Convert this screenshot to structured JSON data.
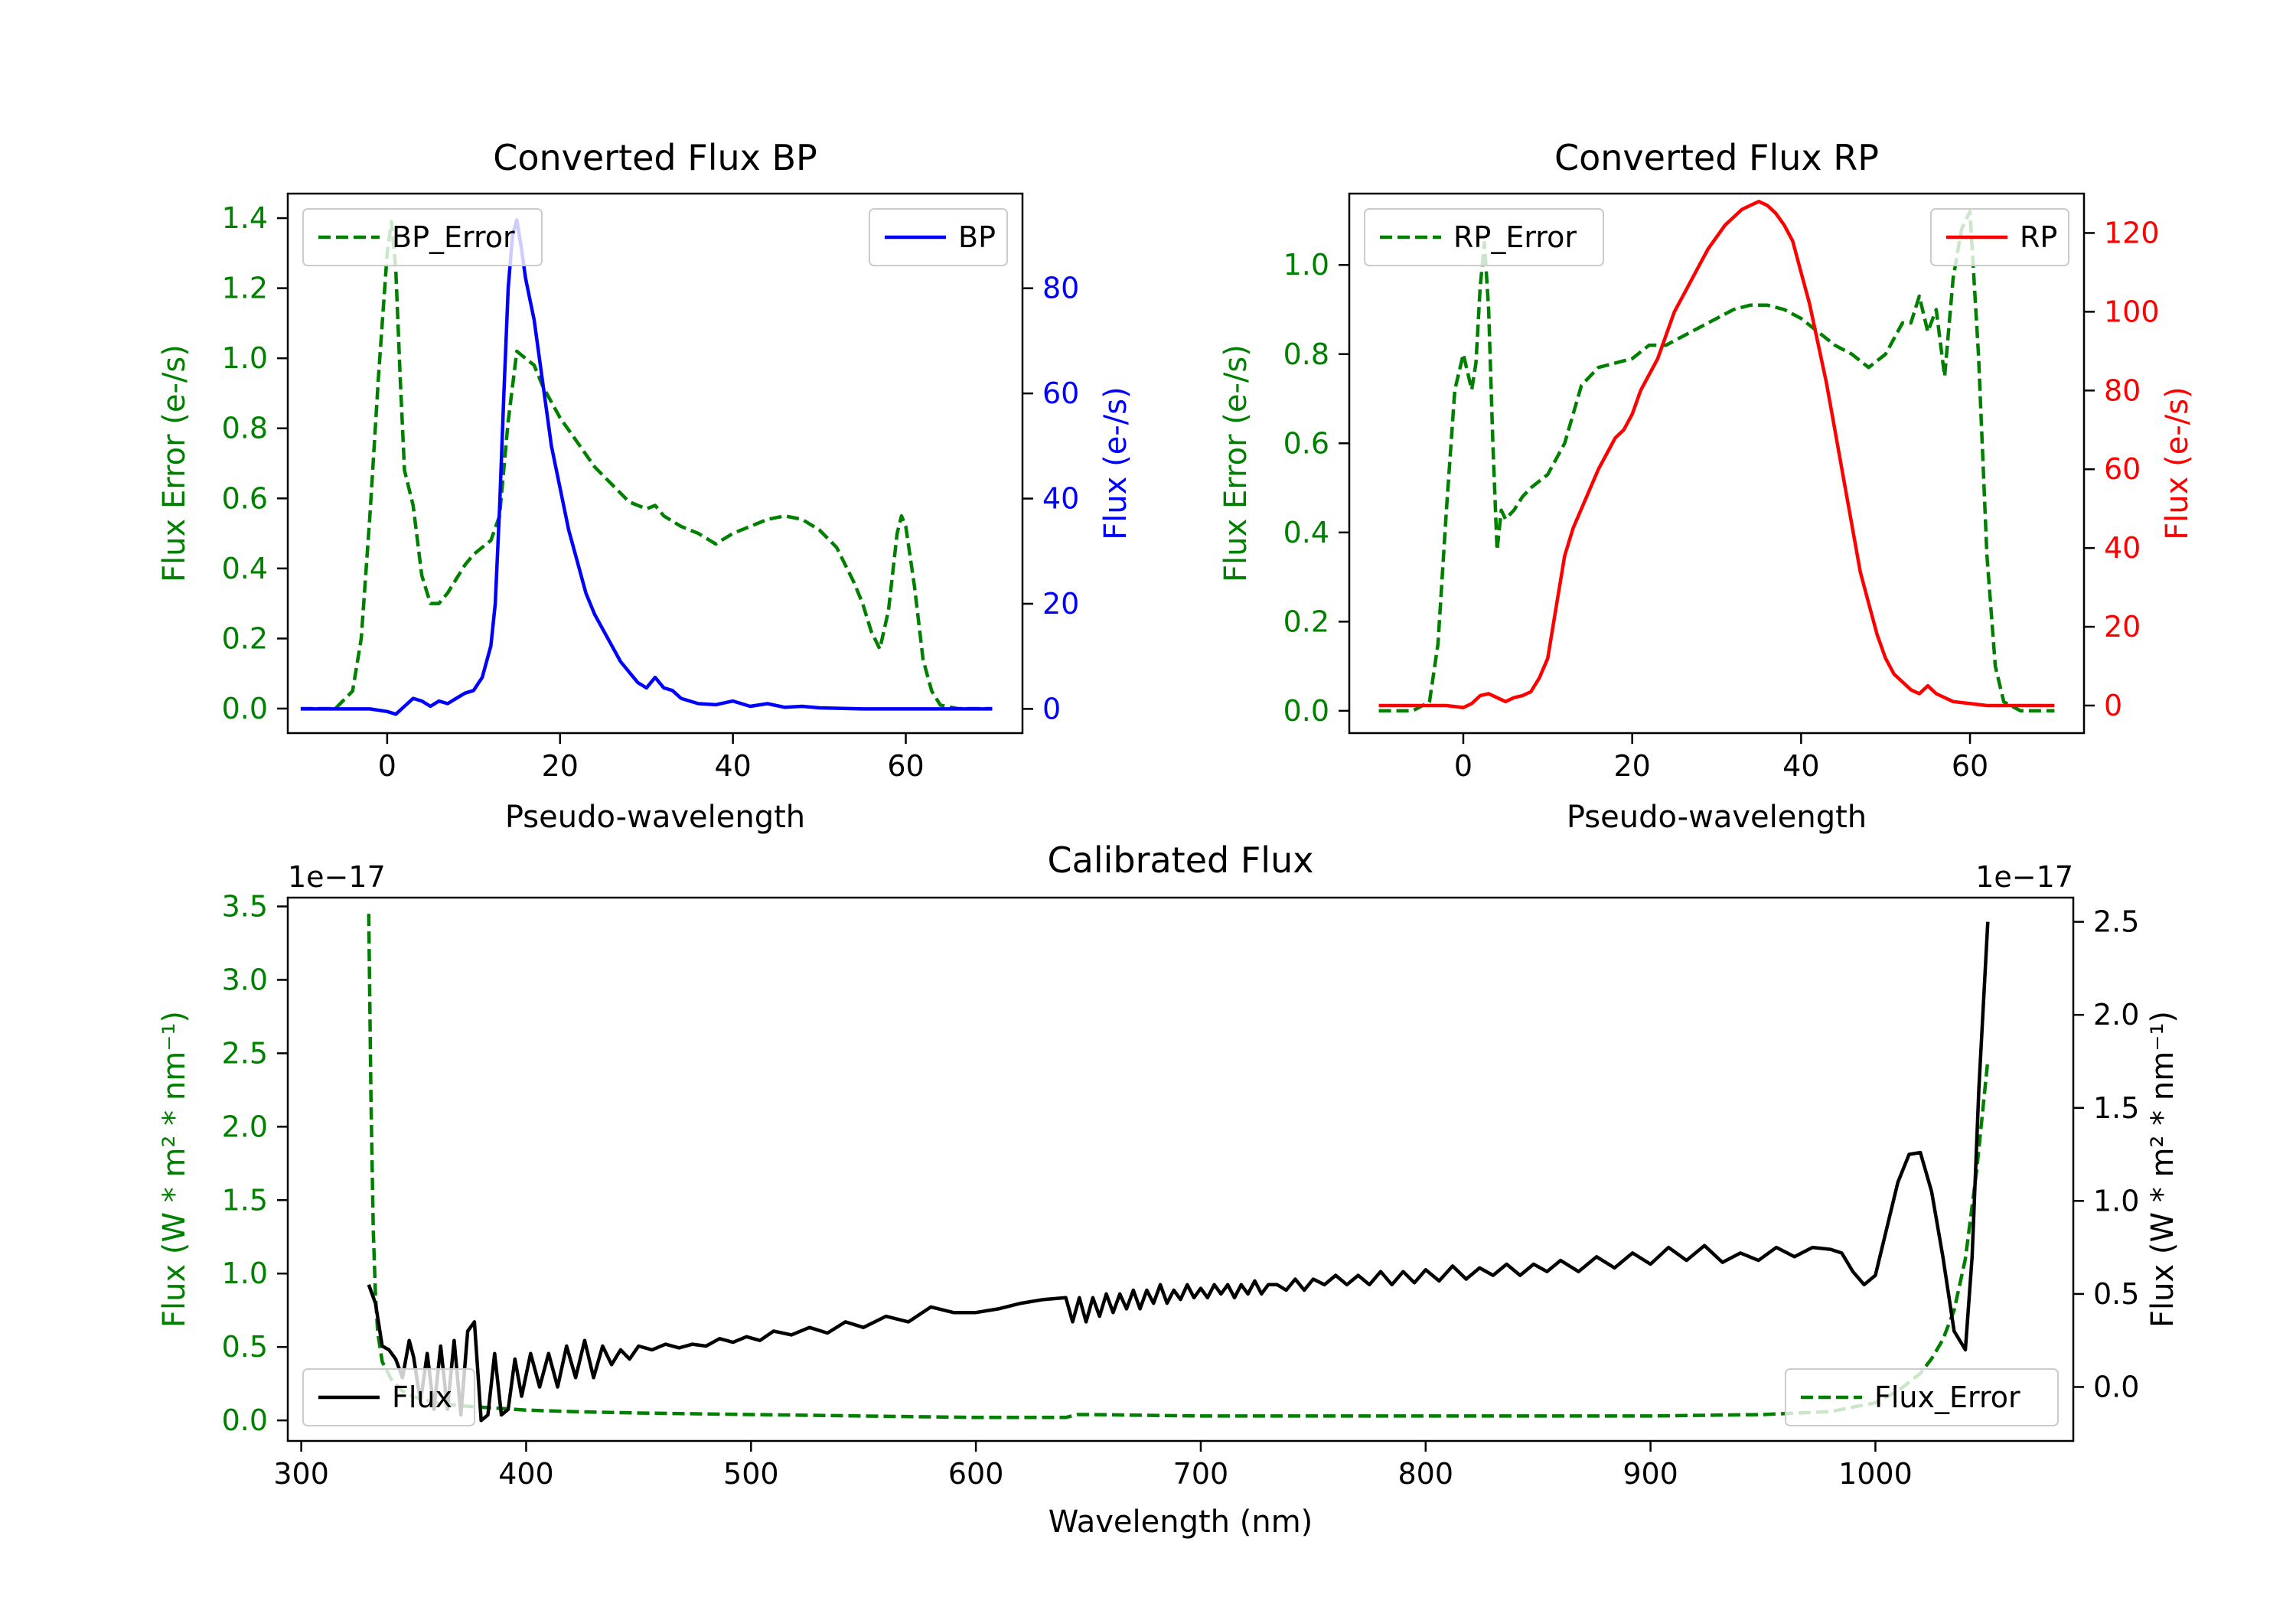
{
  "chart_data": [
    {
      "type": "line",
      "title": "Converted Flux BP",
      "xlabel": "Pseudo-wavelength",
      "ylabel_left": "Flux Error (e-/s)",
      "ylabel_right": "Flux (e-/s)",
      "xlim": [
        -11.5,
        73.5
      ],
      "ylim_left": [
        -0.07,
        1.47
      ],
      "ylim_right": [
        -4.6,
        98
      ],
      "xticks": [
        "0",
        "20",
        "40",
        "60"
      ],
      "yticks_left": [
        "0.0",
        "0.2",
        "0.4",
        "0.6",
        "0.8",
        "1.0",
        "1.2",
        "1.4"
      ],
      "yticks_right": [
        "0",
        "20",
        "40",
        "60",
        "80"
      ],
      "legend": {
        "error": "BP_Error",
        "flux": "BP"
      },
      "colors": {
        "error": "#008000",
        "flux": "#0000ff",
        "left_axis": "#008000",
        "right_axis": "#0000ff"
      },
      "series": [
        {
          "name": "BP_Error",
          "axis": "left",
          "style": "dashed",
          "x": [
            -10,
            -6,
            -4,
            -3,
            -2,
            -1,
            0,
            0.5,
            1,
            1.5,
            2,
            3,
            4,
            5,
            6,
            7,
            8,
            9,
            10,
            12,
            13,
            14,
            15,
            16,
            17,
            18,
            20,
            22,
            24,
            26,
            28,
            30,
            31,
            32,
            34,
            36,
            38,
            40,
            42,
            44,
            46,
            48,
            50,
            52,
            54,
            55,
            56,
            57,
            58,
            59,
            59.5,
            60,
            61,
            62,
            63,
            64,
            66,
            70
          ],
          "y": [
            0,
            0,
            0.05,
            0.2,
            0.55,
            0.95,
            1.3,
            1.39,
            1.25,
            0.95,
            0.68,
            0.58,
            0.38,
            0.3,
            0.3,
            0.33,
            0.37,
            0.41,
            0.44,
            0.48,
            0.55,
            0.82,
            1.02,
            1.0,
            0.98,
            0.92,
            0.83,
            0.76,
            0.69,
            0.64,
            0.59,
            0.57,
            0.58,
            0.55,
            0.52,
            0.5,
            0.47,
            0.5,
            0.52,
            0.54,
            0.55,
            0.54,
            0.51,
            0.46,
            0.36,
            0.3,
            0.22,
            0.17,
            0.28,
            0.5,
            0.55,
            0.52,
            0.35,
            0.14,
            0.05,
            0.01,
            0,
            0
          ]
        },
        {
          "name": "BP",
          "axis": "right",
          "style": "solid",
          "x": [
            -10,
            -2,
            0,
            1,
            2,
            3,
            4,
            5,
            6,
            7,
            8,
            9,
            10,
            11,
            12,
            12.5,
            13,
            13.5,
            14,
            14.5,
            15,
            15.5,
            16,
            16.5,
            17,
            18,
            19,
            20,
            21,
            22,
            23,
            24,
            25,
            26,
            27,
            28,
            29,
            30,
            31,
            32,
            33,
            34,
            35,
            36,
            38,
            40,
            42,
            44,
            46,
            48,
            50,
            55,
            60,
            65,
            70
          ],
          "y": [
            0,
            0,
            -0.5,
            -1,
            0.5,
            2,
            1.5,
            0.5,
            1.5,
            1,
            2,
            3,
            3.5,
            6,
            12,
            20,
            38,
            60,
            80,
            90,
            93,
            88,
            82,
            78,
            74,
            62,
            50,
            42,
            34,
            28,
            22,
            18,
            15,
            12,
            9,
            7,
            5,
            4,
            6,
            4,
            3.5,
            2,
            1.5,
            1,
            0.8,
            1.5,
            0.5,
            1,
            0.3,
            0.5,
            0.2,
            0,
            0,
            0,
            0
          ]
        }
      ]
    },
    {
      "type": "line",
      "title": "Converted Flux RP",
      "xlabel": "Pseudo-wavelength",
      "ylabel_left": "Flux Error (e-/s)",
      "ylabel_right": "Flux (e-/s)",
      "xlim": [
        -13.5,
        73.5
      ],
      "ylim_left": [
        -0.05,
        1.16
      ],
      "ylim_right": [
        -7,
        130
      ],
      "xticks": [
        "0",
        "20",
        "40",
        "60"
      ],
      "yticks_left": [
        "0.0",
        "0.2",
        "0.4",
        "0.6",
        "0.8",
        "1.0"
      ],
      "yticks_right": [
        "0",
        "20",
        "40",
        "60",
        "80",
        "100",
        "120"
      ],
      "legend": {
        "error": "RP_Error",
        "flux": "RP"
      },
      "colors": {
        "error": "#008000",
        "flux": "#ff0000",
        "left_axis": "#008000",
        "right_axis": "#ff0000"
      },
      "series": [
        {
          "name": "RP_Error",
          "axis": "left",
          "style": "dashed",
          "x": [
            -10,
            -6,
            -4,
            -3,
            -2,
            -1,
            0,
            0.5,
            1,
            1.5,
            2,
            2.5,
            3,
            3.5,
            4,
            4.5,
            5,
            6,
            7,
            8,
            10,
            12,
            14,
            16,
            18,
            20,
            22,
            24,
            26,
            28,
            30,
            32,
            34,
            36,
            38,
            40,
            42,
            44,
            46,
            48,
            50,
            52,
            53,
            54,
            55,
            56,
            57,
            58,
            59,
            60,
            61,
            62,
            63,
            64,
            66,
            70
          ],
          "y": [
            0,
            0,
            0.02,
            0.15,
            0.45,
            0.72,
            0.8,
            0.76,
            0.72,
            0.78,
            0.95,
            1.05,
            0.9,
            0.6,
            0.36,
            0.45,
            0.43,
            0.45,
            0.48,
            0.5,
            0.53,
            0.6,
            0.73,
            0.77,
            0.78,
            0.79,
            0.82,
            0.82,
            0.84,
            0.86,
            0.88,
            0.9,
            0.91,
            0.91,
            0.9,
            0.88,
            0.85,
            0.82,
            0.8,
            0.77,
            0.8,
            0.87,
            0.87,
            0.93,
            0.85,
            0.9,
            0.75,
            0.97,
            1.08,
            1.12,
            0.8,
            0.35,
            0.1,
            0.02,
            0,
            0
          ]
        },
        {
          "name": "RP",
          "axis": "right",
          "style": "solid",
          "x": [
            -10,
            -2,
            0,
            1,
            2,
            3,
            4,
            5,
            6,
            7,
            8,
            9,
            10,
            11,
            12,
            13,
            14,
            15,
            16,
            17,
            18,
            19,
            20,
            21,
            22,
            23,
            24,
            25,
            26,
            27,
            28,
            29,
            30,
            31,
            32,
            33,
            34,
            35,
            36,
            37,
            38,
            39,
            40,
            41,
            42,
            43,
            44,
            45,
            46,
            47,
            48,
            49,
            50,
            51,
            52,
            53,
            54,
            55,
            56,
            58,
            60,
            62,
            70
          ],
          "y": [
            0,
            0,
            -0.5,
            0.5,
            2.5,
            3,
            2,
            1,
            2,
            2.5,
            3.5,
            7,
            12,
            25,
            38,
            45,
            50,
            55,
            60,
            64,
            68,
            70,
            74,
            80,
            84,
            88,
            94,
            100,
            104,
            108,
            112,
            116,
            119,
            122,
            124,
            126,
            127,
            128,
            127,
            125,
            122,
            118,
            110,
            102,
            92,
            82,
            70,
            58,
            46,
            34,
            26,
            18,
            12,
            8,
            6,
            4,
            3,
            5,
            3,
            1,
            0.5,
            0,
            0
          ]
        }
      ]
    },
    {
      "type": "line",
      "title": "Calibrated Flux",
      "xlabel": "Wavelength (nm)",
      "ylabel_left": "Flux (W * m² * nm⁻¹)",
      "ylabel_right": "Flux (W * m² * nm⁻¹)",
      "offset_left": "1e−17",
      "offset_right": "1e−17",
      "xlim": [
        294,
        1088
      ],
      "ylim_left": [
        -0.14,
        3.56
      ],
      "ylim_right": [
        -0.29,
        2.63
      ],
      "xticks": [
        "300",
        "400",
        "500",
        "600",
        "700",
        "800",
        "900",
        "1000"
      ],
      "yticks_left": [
        "0.0",
        "0.5",
        "1.0",
        "1.5",
        "2.0",
        "2.5",
        "3.0",
        "3.5"
      ],
      "yticks_right": [
        "0.0",
        "0.5",
        "1.0",
        "1.5",
        "2.0",
        "2.5"
      ],
      "legend": {
        "flux": "Flux",
        "error": "Flux_Error"
      },
      "colors": {
        "error": "#008000",
        "flux": "#000000",
        "left_axis": "#008000",
        "right_axis": "#000000"
      },
      "series": [
        {
          "name": "Flux_Error",
          "axis": "left",
          "style": "dashed",
          "x": [
            330,
            331,
            332,
            333,
            334,
            336,
            340,
            345,
            350,
            360,
            370,
            380,
            390,
            400,
            420,
            450,
            500,
            550,
            600,
            640,
            645,
            650,
            700,
            750,
            800,
            850,
            900,
            950,
            980,
            1000,
            1010,
            1020,
            1025,
            1030,
            1035,
            1040,
            1045,
            1050
          ],
          "y": [
            3.45,
            2.2,
            1.3,
            0.85,
            0.6,
            0.4,
            0.28,
            0.2,
            0.16,
            0.12,
            0.1,
            0.09,
            0.08,
            0.07,
            0.06,
            0.05,
            0.04,
            0.03,
            0.02,
            0.02,
            0.04,
            0.04,
            0.03,
            0.03,
            0.03,
            0.03,
            0.03,
            0.04,
            0.06,
            0.12,
            0.2,
            0.32,
            0.42,
            0.55,
            0.75,
            1.1,
            1.7,
            2.45
          ]
        },
        {
          "name": "Flux",
          "axis": "right",
          "style": "solid",
          "x": [
            330,
            333,
            336,
            339,
            342,
            345,
            348,
            350,
            353,
            356,
            359,
            362,
            365,
            368,
            371,
            374,
            377,
            380,
            383,
            386,
            389,
            392,
            395,
            398,
            402,
            406,
            410,
            414,
            418,
            422,
            426,
            430,
            434,
            438,
            442,
            446,
            450,
            456,
            462,
            468,
            474,
            480,
            486,
            492,
            498,
            504,
            510,
            518,
            526,
            534,
            542,
            550,
            560,
            570,
            580,
            590,
            600,
            610,
            620,
            630,
            640,
            643,
            646,
            649,
            652,
            655,
            658,
            661,
            664,
            667,
            670,
            673,
            676,
            679,
            682,
            685,
            688,
            691,
            694,
            697,
            700,
            703,
            706,
            709,
            712,
            715,
            718,
            721,
            724,
            727,
            730,
            734,
            738,
            742,
            746,
            750,
            755,
            760,
            765,
            770,
            775,
            780,
            785,
            790,
            795,
            800,
            806,
            812,
            818,
            824,
            830,
            836,
            842,
            848,
            854,
            860,
            868,
            876,
            884,
            892,
            900,
            908,
            916,
            924,
            932,
            940,
            948,
            956,
            964,
            972,
            980,
            985,
            990,
            995,
            1000,
            1005,
            1010,
            1015,
            1020,
            1025,
            1030,
            1035,
            1040,
            1043,
            1046,
            1050
          ],
          "y": [
            0.55,
            0.45,
            0.22,
            0.2,
            0.15,
            0.05,
            0.25,
            0.16,
            -0.08,
            0.18,
            -0.12,
            0.22,
            -0.12,
            0.25,
            -0.15,
            0.3,
            0.35,
            -0.18,
            -0.15,
            0.18,
            -0.15,
            -0.12,
            0.15,
            -0.05,
            0.18,
            0.0,
            0.18,
            0.0,
            0.22,
            0.05,
            0.25,
            0.05,
            0.22,
            0.12,
            0.2,
            0.15,
            0.22,
            0.2,
            0.23,
            0.21,
            0.23,
            0.22,
            0.26,
            0.24,
            0.27,
            0.25,
            0.3,
            0.28,
            0.32,
            0.29,
            0.35,
            0.32,
            0.38,
            0.35,
            0.43,
            0.4,
            0.4,
            0.42,
            0.45,
            0.47,
            0.48,
            0.35,
            0.48,
            0.35,
            0.48,
            0.38,
            0.5,
            0.4,
            0.5,
            0.42,
            0.52,
            0.42,
            0.52,
            0.45,
            0.55,
            0.45,
            0.52,
            0.47,
            0.55,
            0.48,
            0.53,
            0.48,
            0.55,
            0.5,
            0.55,
            0.48,
            0.55,
            0.5,
            0.57,
            0.5,
            0.55,
            0.55,
            0.52,
            0.58,
            0.52,
            0.58,
            0.55,
            0.6,
            0.55,
            0.6,
            0.55,
            0.62,
            0.55,
            0.62,
            0.56,
            0.63,
            0.57,
            0.65,
            0.58,
            0.64,
            0.6,
            0.66,
            0.6,
            0.66,
            0.62,
            0.68,
            0.62,
            0.7,
            0.64,
            0.72,
            0.66,
            0.75,
            0.68,
            0.76,
            0.67,
            0.72,
            0.68,
            0.75,
            0.7,
            0.75,
            0.74,
            0.72,
            0.62,
            0.55,
            0.6,
            0.85,
            1.1,
            1.25,
            1.26,
            1.05,
            0.7,
            0.3,
            0.2,
            0.7,
            1.6,
            2.5
          ]
        }
      ]
    }
  ]
}
